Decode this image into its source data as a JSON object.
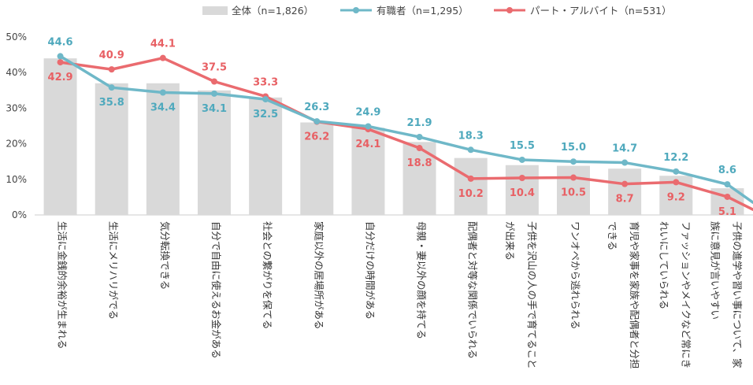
{
  "chart_data": {
    "type": "bar",
    "categories": [
      "生活に金銭的余裕が生まれる",
      "生活にメリハリがでる",
      "気分転換できる",
      "自分で自由に使えるお金がある",
      "社会との繋がりを保てる",
      "家庭以外の居場所がある",
      "自分だけの時間がある",
      "母親・妻以外の顔を持てる",
      "配偶者と対等な関係でいられる",
      "子供を沢山の人の手で育てることが出来る",
      "ワンオペから逃れられる",
      "育児や家事を家族や配偶者と分担できる",
      "ファッションやメイクなど常にきれいにしていられる",
      "子供の進学や習い事について、家族に意見が言いやすい"
    ],
    "category_lines": [
      [
        "生活に金銭的余裕が生まれる"
      ],
      [
        "生活にメリハリがでる"
      ],
      [
        "気分転換できる"
      ],
      [
        "自分で自由に使えるお金がある"
      ],
      [
        "社会との繋がりを保てる"
      ],
      [
        "家庭以外の居場所がある"
      ],
      [
        "自分だけの時間がある"
      ],
      [
        "母親・妻以外の顔を持てる"
      ],
      [
        "配偶者と対等な関係でいられる"
      ],
      [
        "子供を沢山の人の手で育てること",
        "が出来る"
      ],
      [
        "ワンオペから逃れられる"
      ],
      [
        "育児や家事を家族や配偶者と分担",
        "できる"
      ],
      [
        "ファッションやメイクなど常にき",
        "れいにしていられる"
      ],
      [
        "子供の進学や習い事について、家",
        "族に意見が言いやすい"
      ]
    ],
    "series": [
      {
        "name": "全体（n=1,826）",
        "kind": "bar",
        "color": "#d9d9d9",
        "values": [
          44.0,
          37.0,
          37.0,
          35.0,
          33.0,
          26.0,
          24.5,
          20.5,
          16.0,
          14.0,
          13.8,
          13.0,
          11.0,
          7.5
        ]
      },
      {
        "name": "有職者（n=1,295）",
        "kind": "line",
        "color": "#6fb8c8",
        "values": [
          44.6,
          35.8,
          34.4,
          34.1,
          32.5,
          26.3,
          24.9,
          21.9,
          18.3,
          15.5,
          15.0,
          14.7,
          12.2,
          8.6
        ],
        "labels": [
          "44.6",
          "35.8",
          "34.4",
          "34.1",
          "32.5",
          "26.3",
          "24.9",
          "21.9",
          "18.3",
          "15.5",
          "15.0",
          "14.7",
          "12.2",
          "8.6"
        ]
      },
      {
        "name": "パート・アルバイト（n=531）",
        "kind": "line",
        "color": "#ea6b6f",
        "values": [
          42.9,
          40.9,
          44.1,
          37.5,
          33.3,
          26.2,
          24.1,
          18.8,
          10.2,
          10.4,
          10.5,
          8.7,
          9.2,
          5.1
        ],
        "labels": [
          "42.9",
          "40.9",
          "44.1",
          "37.5",
          "33.3",
          "26.2",
          "24.1",
          "18.8",
          "10.2",
          "10.4",
          "10.5",
          "8.7",
          "9.2",
          "5.1"
        ]
      }
    ],
    "line_tail": {
      "有職者（n=1,295）": 3.5,
      "パート・アルバイト（n=531）": 1.5
    },
    "yticks": [
      "0%",
      "10%",
      "20%",
      "30%",
      "40%",
      "50%"
    ],
    "ylim": [
      0,
      50
    ],
    "grid": false,
    "legend": "top"
  }
}
